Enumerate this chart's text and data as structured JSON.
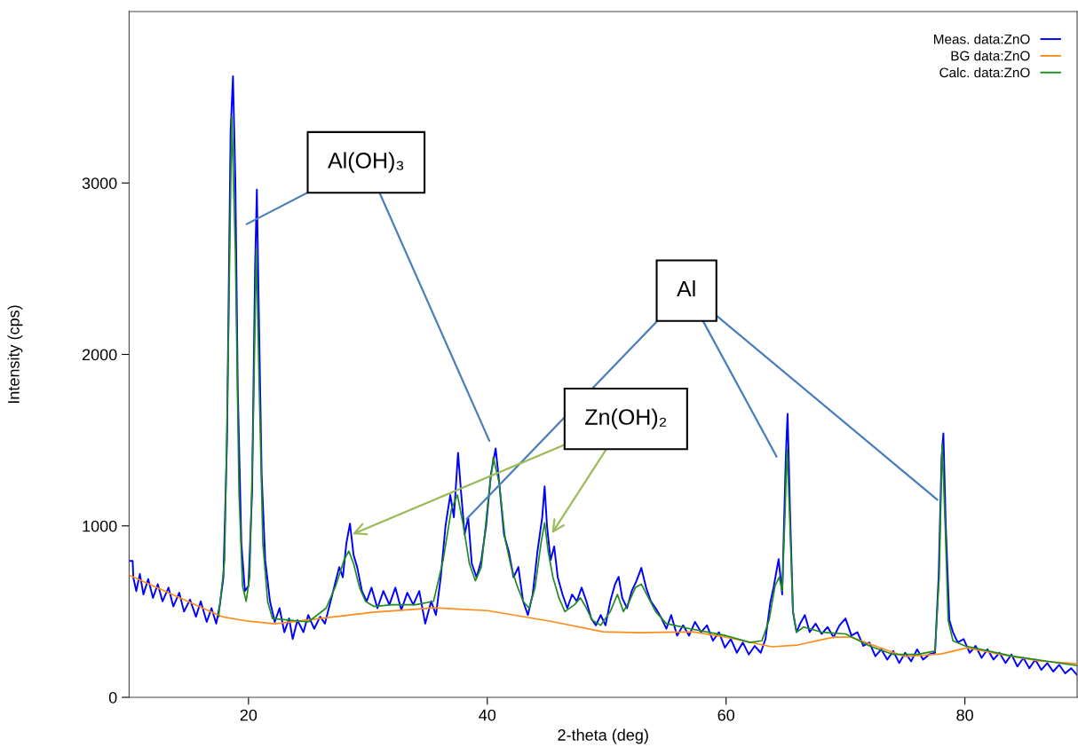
{
  "chart_data": {
    "type": "line",
    "xlabel": "2-theta (deg)",
    "ylabel": "Intensity (cps)",
    "xlim": [
      10,
      89.4
    ],
    "ylim": [
      0,
      4000
    ],
    "xticks": [
      20,
      40,
      60,
      80
    ],
    "yticks": [
      0,
      1000,
      2000,
      3000
    ],
    "grid": false,
    "legend": "top right",
    "marker": "none",
    "line_style": "solid",
    "series": [
      {
        "name": "Meas. data:ZnO",
        "color": "#0000ff",
        "x": [
          10.0,
          10.3,
          10.35,
          10.6,
          10.9,
          11.2,
          11.6,
          12.0,
          12.4,
          12.8,
          13.3,
          13.7,
          14.2,
          14.6,
          15.1,
          15.6,
          16.0,
          16.5,
          16.9,
          17.3,
          17.6,
          17.9,
          18.2,
          18.5,
          18.7,
          18.9,
          19.1,
          19.4,
          19.7,
          20.0,
          20.3,
          20.55,
          20.7,
          20.85,
          21.1,
          21.4,
          21.8,
          22.2,
          22.6,
          23.0,
          23.4,
          23.7,
          24.1,
          24.6,
          25.0,
          25.5,
          26.0,
          26.4,
          26.8,
          27.2,
          27.6,
          27.9,
          28.2,
          28.5,
          28.8,
          29.1,
          29.5,
          29.9,
          30.3,
          30.8,
          31.3,
          31.8,
          32.3,
          32.8,
          33.3,
          33.8,
          34.3,
          34.8,
          35.3,
          35.7,
          36.1,
          36.5,
          36.9,
          37.2,
          37.55,
          37.8,
          38.1,
          38.4,
          38.7,
          39.1,
          39.5,
          39.9,
          40.3,
          40.7,
          41.0,
          41.4,
          41.8,
          42.2,
          42.6,
          43.0,
          43.4,
          43.8,
          44.2,
          44.6,
          44.8,
          45.0,
          45.3,
          45.6,
          45.9,
          46.3,
          46.7,
          47.1,
          47.5,
          47.9,
          48.3,
          48.7,
          49.1,
          49.5,
          49.9,
          50.3,
          50.7,
          51.0,
          51.3,
          51.7,
          52.1,
          52.5,
          52.9,
          53.3,
          53.7,
          54.1,
          54.6,
          55.0,
          55.4,
          55.9,
          56.4,
          56.9,
          57.4,
          57.9,
          58.4,
          58.9,
          59.4,
          59.9,
          60.4,
          60.9,
          61.4,
          61.9,
          62.4,
          62.9,
          63.3,
          63.7,
          64.0,
          64.4,
          64.7,
          65.0,
          65.15,
          65.35,
          65.6,
          65.9,
          66.2,
          66.6,
          67.0,
          67.5,
          68.0,
          68.5,
          69.0,
          69.5,
          70.0,
          70.5,
          71.0,
          71.5,
          72.0,
          72.5,
          73.0,
          73.5,
          74.0,
          74.5,
          75.0,
          75.5,
          76.0,
          76.5,
          77.0,
          77.5,
          77.8,
          78.05,
          78.2,
          78.4,
          78.7,
          79.0,
          79.4,
          79.9,
          80.4,
          80.9,
          81.4,
          81.9,
          82.4,
          82.9,
          83.4,
          83.9,
          84.4,
          84.9,
          85.4,
          85.9,
          86.4,
          86.9,
          87.4,
          87.9,
          88.4,
          88.9,
          89.4
        ],
        "values": [
          796,
          796,
          700,
          620,
          720,
          600,
          690,
          580,
          660,
          560,
          640,
          530,
          610,
          500,
          570,
          470,
          560,
          440,
          520,
          430,
          540,
          700,
          1500,
          3300,
          3623,
          3000,
          1800,
          900,
          620,
          650,
          1200,
          2500,
          2961,
          2300,
          1300,
          800,
          560,
          440,
          520,
          380,
          460,
          340,
          450,
          380,
          480,
          400,
          470,
          430,
          540,
          650,
          760,
          700,
          900,
          1013,
          830,
          760,
          620,
          560,
          640,
          520,
          620,
          540,
          640,
          510,
          610,
          540,
          620,
          430,
          560,
          480,
          700,
          1000,
          1180,
          1050,
          1426,
          1200,
          950,
          1050,
          780,
          700,
          800,
          1000,
          1300,
          1452,
          1250,
          950,
          850,
          700,
          760,
          560,
          480,
          600,
          850,
          1050,
          1230,
          1000,
          800,
          880,
          700,
          600,
          520,
          600,
          560,
          640,
          560,
          460,
          420,
          480,
          420,
          560,
          660,
          703,
          580,
          520,
          620,
          680,
          755,
          640,
          560,
          520,
          460,
          400,
          480,
          360,
          420,
          360,
          440,
          380,
          420,
          330,
          380,
          290,
          340,
          260,
          320,
          250,
          300,
          260,
          340,
          550,
          650,
          806,
          600,
          1400,
          1654,
          1100,
          500,
          380,
          430,
          480,
          380,
          430,
          370,
          410,
          350,
          420,
          460,
          360,
          380,
          300,
          320,
          240,
          280,
          220,
          270,
          200,
          260,
          210,
          280,
          220,
          250,
          260,
          700,
          1400,
          1540,
          1000,
          450,
          380,
          320,
          340,
          260,
          300,
          230,
          280,
          220,
          260,
          200,
          250,
          180,
          230,
          170,
          220,
          160,
          200,
          150,
          190,
          140,
          170,
          130
        ]
      },
      {
        "name": "BG data:ZnO",
        "color": "#ff8c1a",
        "x": [
          10.0,
          17.8,
          20.0,
          22.2,
          26.0,
          30.4,
          35.6,
          40.0,
          45.3,
          49.7,
          52.7,
          57.2,
          60.0,
          63.8,
          66.0,
          69.0,
          70.5,
          73.5,
          75.0,
          78.0,
          80.2,
          83.2,
          86.2,
          89.4
        ],
        "values": [
          713,
          470,
          444,
          429,
          460,
          496,
          522,
          506,
          444,
          382,
          377,
          382,
          351,
          295,
          305,
          351,
          351,
          274,
          238,
          253,
          289,
          248,
          212,
          196
        ]
      },
      {
        "name": "Calc. data:ZnO",
        "color": "#1e8c1e",
        "x": [
          17.5,
          18.0,
          18.3,
          18.6,
          18.9,
          19.2,
          19.5,
          19.8,
          20.1,
          20.4,
          20.65,
          20.9,
          21.2,
          21.6,
          22.0,
          25.0,
          26.5,
          27.3,
          28.0,
          28.4,
          28.8,
          29.3,
          29.8,
          30.5,
          32.0,
          34.0,
          35.5,
          36.3,
          37.0,
          37.5,
          38.0,
          38.5,
          39.0,
          39.5,
          40.0,
          40.5,
          41.0,
          41.5,
          42.0,
          42.5,
          43.0,
          43.5,
          44.0,
          44.5,
          44.8,
          45.1,
          45.5,
          46.0,
          46.5,
          47.3,
          47.8,
          48.3,
          48.8,
          49.5,
          50.3,
          50.9,
          51.4,
          51.9,
          52.4,
          52.9,
          53.5,
          54.1,
          55.0,
          57.0,
          60.0,
          62.0,
          63.0,
          63.6,
          64.1,
          64.45,
          64.7,
          64.95,
          65.1,
          65.3,
          65.6,
          65.9,
          66.5,
          68.0,
          70.0,
          72.0,
          74.0,
          76.0,
          77.5,
          77.85,
          78.1,
          78.35,
          78.6,
          79.0,
          80.0,
          84.0,
          89.4
        ],
        "values": [
          470,
          800,
          2000,
          3390,
          2600,
          1200,
          650,
          560,
          700,
          1600,
          2615,
          1800,
          900,
          560,
          460,
          440,
          520,
          650,
          800,
          853,
          780,
          640,
          560,
          530,
          540,
          540,
          560,
          800,
          1100,
          1180,
          1000,
          780,
          680,
          760,
          1100,
          1400,
          1250,
          920,
          760,
          650,
          560,
          520,
          640,
          900,
          1018,
          850,
          700,
          580,
          500,
          540,
          580,
          520,
          450,
          420,
          500,
          600,
          500,
          560,
          640,
          660,
          580,
          500,
          430,
          400,
          360,
          320,
          330,
          450,
          650,
          700,
          620,
          1100,
          1450,
          1100,
          500,
          380,
          410,
          380,
          370,
          300,
          250,
          250,
          270,
          700,
          1480,
          1000,
          450,
          330,
          300,
          240,
          185
        ]
      }
    ],
    "annotations": [
      "Al(OH)₃",
      {
        "text": "Al",
        "x": 77.7,
        "y": 1152
      },
      {
        "text": "Zn(OH)₂",
        "x": 28.7,
        "y": 951
      }
    ]
  }
}
